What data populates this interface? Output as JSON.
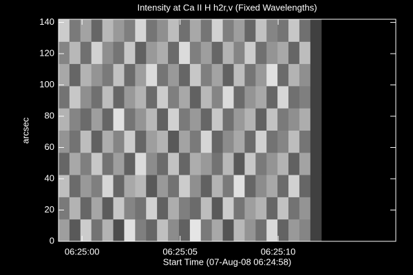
{
  "chart_data": {
    "type": "heatmap",
    "title": "Intensity at Ca II H h2r,v (Fixed Wavelengths)",
    "xlabel": "Start Time (07-Aug-08 06:24:58)",
    "ylabel": "arcsec",
    "xlim": [
      0.8,
      18.0
    ],
    "ylim": [
      0,
      142
    ],
    "xticks": [
      {
        "value": 2,
        "label": "06:25:00"
      },
      {
        "value": 7,
        "label": "06:25:05"
      },
      {
        "value": 12,
        "label": "06:25:10"
      }
    ],
    "yticks": [
      0,
      20,
      40,
      60,
      80,
      100,
      120,
      140
    ],
    "extent": [
      0.8,
      14.2,
      0,
      142
    ],
    "z": [
      [
        62,
        35,
        80,
        45,
        70,
        30,
        88,
        50,
        40,
        75,
        55,
        38,
        90,
        48,
        66,
        33,
        72,
        58,
        44,
        85,
        39,
        60,
        52,
        25
      ],
      [
        48,
        70,
        40,
        65,
        36,
        78,
        52,
        45,
        82,
        38,
        68,
        50,
        42,
        74,
        35,
        80,
        46,
        62,
        70,
        40,
        76,
        45,
        58,
        25
      ],
      [
        75,
        42,
        60,
        50,
        84,
        40,
        66,
        72,
        35,
        60,
        45,
        80,
        56,
        38,
        70,
        48,
        88,
        40,
        55,
        66,
        42,
        82,
        40,
        25
      ],
      [
        40,
        66,
        50,
        78,
        45,
        62,
        38,
        86,
        55,
        42,
        76,
        40,
        68,
        60,
        45,
        72,
        35,
        78,
        48,
        58,
        70,
        38,
        64,
        25
      ],
      [
        58,
        45,
        74,
        38,
        68,
        52,
        80,
        40,
        62,
        70,
        35,
        64,
        48,
        84,
        40,
        55,
        66,
        42,
        82,
        45,
        52,
        74,
        46,
        25
      ],
      [
        70,
        52,
        42,
        62,
        40,
        88,
        46,
        58,
        72,
        38,
        82,
        48,
        60,
        40,
        78,
        44,
        60,
        70,
        38,
        76,
        48,
        56,
        68,
        25
      ],
      [
        45,
        78,
        56,
        44,
        74,
        40,
        60,
        70,
        42,
        80,
        50,
        66,
        38,
        72,
        52,
        86,
        42,
        58,
        66,
        40,
        84,
        44,
        50,
        25
      ],
      [
        66,
        40,
        70,
        58,
        48,
        76,
        42,
        62,
        86,
        46,
        60,
        40,
        78,
        50,
        64,
        38,
        74,
        46,
        60,
        88,
        42,
        70,
        56,
        25
      ],
      [
        52,
        72,
        44,
        82,
        56,
        46,
        78,
        38,
        60,
        68,
        42,
        86,
        50,
        62,
        40,
        70,
        52,
        80,
        44,
        58,
        66,
        40,
        74,
        25
      ],
      [
        80,
        48,
        64,
        40,
        72,
        60,
        50,
        84,
        46,
        56,
        74,
        44,
        66,
        46,
        82,
        50,
        62,
        40,
        76,
        52,
        46,
        78,
        44,
        25
      ]
    ]
  }
}
